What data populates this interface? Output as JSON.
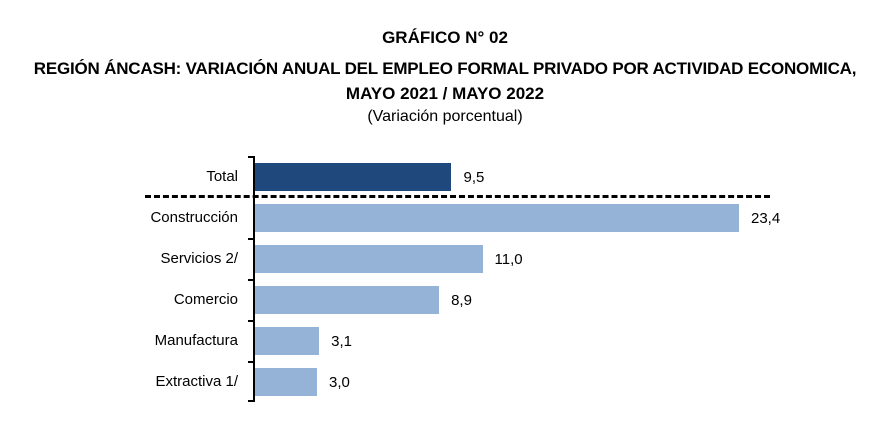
{
  "header": {
    "figure_number": "GRÁFICO N° 02",
    "title": "REGIÓN ÁNCASH: VARIACIÓN ANUAL DEL EMPLEO FORMAL PRIVADO POR ACTIVIDAD ECONOMICA,",
    "period": "MAYO 2021 / MAYO 2022",
    "subtitle": "(Variación porcentual)"
  },
  "colors": {
    "total_bar": "#1F497D",
    "sector_bar": "#95B3D7"
  },
  "bars": [
    {
      "label": "Total",
      "value": 9.5,
      "display": "9,5"
    },
    {
      "label": "Construcción",
      "value": 23.4,
      "display": "23,4"
    },
    {
      "label": "Servicios 2/",
      "value": 11.0,
      "display": "11,0"
    },
    {
      "label": "Comercio",
      "value": 8.9,
      "display": "8,9"
    },
    {
      "label": "Manufactura",
      "value": 3.1,
      "display": "3,1"
    },
    {
      "label": "Extractiva 1/",
      "value": 3.0,
      "display": "3,0"
    }
  ],
  "chart_data": {
    "type": "bar",
    "orientation": "horizontal",
    "title": "GRÁFICO N° 02 — REGIÓN ÁNCASH: VARIACIÓN ANUAL DEL EMPLEO FORMAL PRIVADO POR ACTIVIDAD ECONOMICA, MAYO 2021 / MAYO 2022",
    "subtitle": "(Variación porcentual)",
    "categories": [
      "Total",
      "Construcción",
      "Servicios 2/",
      "Comercio",
      "Manufactura",
      "Extractiva 1/"
    ],
    "values": [
      9.5,
      23.4,
      11.0,
      8.9,
      3.1,
      3.0
    ],
    "data_labels": [
      "9,5",
      "23,4",
      "11,0",
      "8,9",
      "3,1",
      "3,0"
    ],
    "xlabel": "",
    "ylabel": "",
    "grid": false,
    "legend": "none",
    "annotations": [
      "Dashed separator line between Total and sector bars"
    ]
  }
}
